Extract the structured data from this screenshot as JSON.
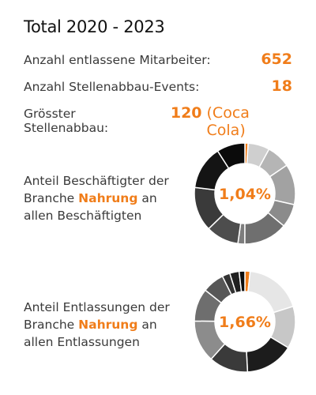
{
  "title": "Total 2020 - 2023",
  "stats": {
    "employees_label": "Anzahl entlassene Mitarbeiter:",
    "employees_value": "652",
    "events_label": "Anzahl Stellenabbau-Events:",
    "events_value": "18",
    "largest_label": "Grösster Stellenabbau:",
    "largest_value": "120",
    "largest_company": "(Coca Cola)"
  },
  "donut1_text": {
    "line1_prefix": "Anteil Beschäftigter der",
    "branche": "Branche",
    "highlight": "Nahrung",
    "suffix": "an",
    "line3": "allen Beschäftigten"
  },
  "donut2_text": {
    "line1_prefix": "Anteil Entlassungen der",
    "branche": "Branche",
    "highlight": "Nahrung",
    "suffix": "an",
    "line3": "allen Entlassungen"
  },
  "colors": {
    "accent": "#f07d1a"
  },
  "chart_data": [
    {
      "type": "pie",
      "variant": "donut",
      "center_label": "1,04%",
      "highlighted_value": 1.04,
      "slices": [
        {
          "value": 1.04,
          "color": "#f07d1a"
        },
        {
          "value": 6.9,
          "color": "#cfcfcf"
        },
        {
          "value": 7.6,
          "color": "#b5b5b5"
        },
        {
          "value": 13.0,
          "color": "#a2a2a2"
        },
        {
          "value": 7.5,
          "color": "#8b8b8b"
        },
        {
          "value": 14.0,
          "color": "#6f6f6f"
        },
        {
          "value": 2.2,
          "color": "#7d7d7d"
        },
        {
          "value": 10.5,
          "color": "#4d4d4d"
        },
        {
          "value": 14.2,
          "color": "#3a3a3a"
        },
        {
          "value": 14.0,
          "color": "#141414"
        },
        {
          "value": 9.06,
          "color": "#0b0b0b"
        }
      ]
    },
    {
      "type": "pie",
      "variant": "donut",
      "center_label": "1,66%",
      "highlighted_value": 1.66,
      "slices": [
        {
          "value": 1.66,
          "color": "#f07d1a"
        },
        {
          "value": 18.5,
          "color": "#e6e6e6"
        },
        {
          "value": 13.5,
          "color": "#c7c7c7"
        },
        {
          "value": 15.5,
          "color": "#1c1c1c"
        },
        {
          "value": 12.5,
          "color": "#3a3a3a"
        },
        {
          "value": 13.5,
          "color": "#8c8c8c"
        },
        {
          "value": 10.5,
          "color": "#6e6e6e"
        },
        {
          "value": 7.0,
          "color": "#575757"
        },
        {
          "value": 2.5,
          "color": "#333333"
        },
        {
          "value": 3.0,
          "color": "#202020"
        },
        {
          "value": 1.84,
          "color": "#0d0d0d"
        }
      ]
    }
  ]
}
